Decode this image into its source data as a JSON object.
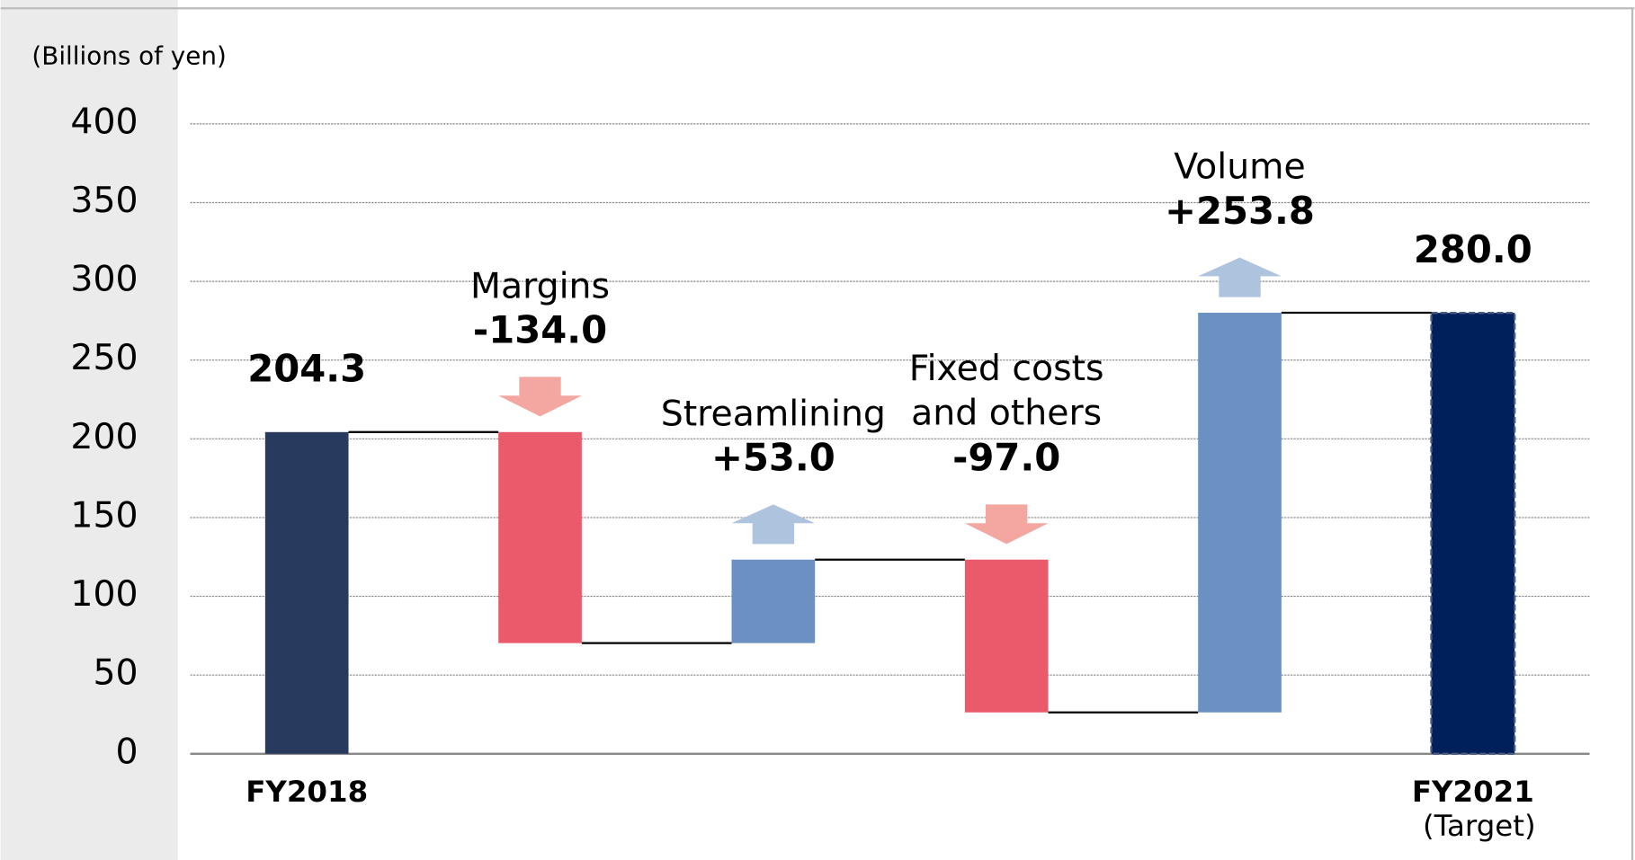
{
  "chart_data": {
    "type": "waterfall",
    "y_axis_label": "(Billions of yen)",
    "categories": [
      "FY2018",
      "Margins",
      "Streamlining",
      "Fixed costs and others",
      "Volume",
      "FY2021"
    ],
    "category_note": "(Target)",
    "values": [
      204.3,
      -134.0,
      53.0,
      -97.0,
      253.8,
      280.0
    ],
    "value_labels": [
      "204.3",
      "-134.0",
      "+53.0",
      "-97.0",
      "+253.8",
      "280.0"
    ],
    "colors": {
      "start": "#283a5e",
      "end": "#00205b",
      "increase": "#6b91c3",
      "decrease": "#eb5a6b"
    },
    "ylim": [
      0,
      400
    ],
    "yticks": [
      0,
      50,
      100,
      150,
      200,
      250,
      300,
      350,
      400
    ],
    "grid": true
  }
}
